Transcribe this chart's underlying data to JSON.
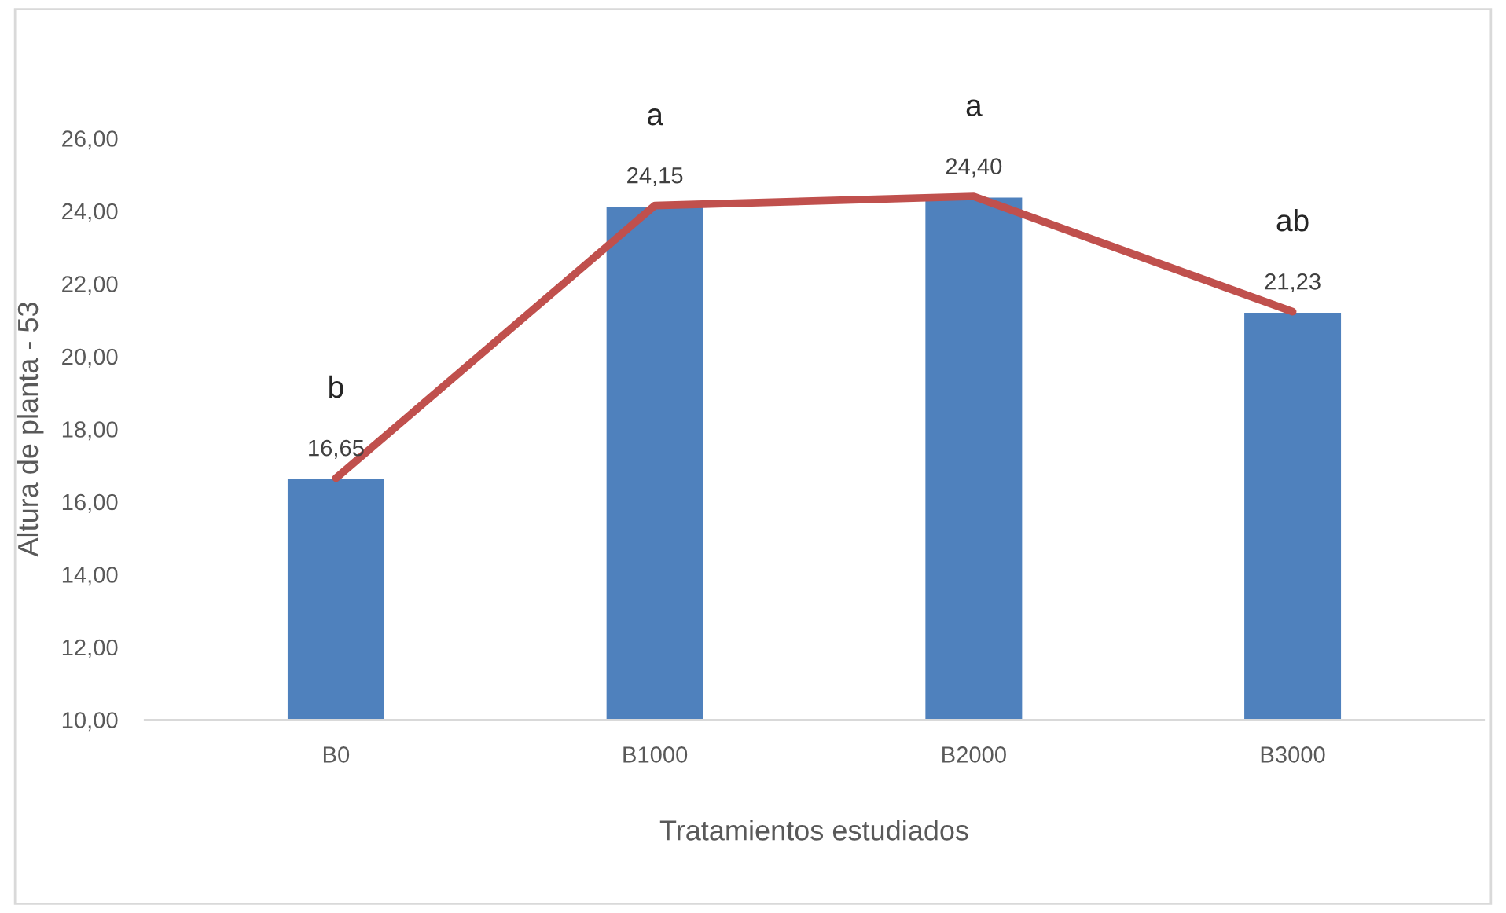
{
  "chart_data": {
    "type": "bar",
    "xlabel": "Tratamientos estudiados",
    "ylabel": "Altura de planta - 53",
    "categories": [
      "B0",
      "B1000",
      "B2000",
      "B3000"
    ],
    "series": [
      {
        "color": "#4f81bd",
        "values": [
          16.65,
          24.15,
          24.4,
          21.23
        ],
        "value_labels": [
          "16,65",
          "24,15",
          "24,40",
          "21,23"
        ]
      },
      {
        "type": "line",
        "color": "#c0504d",
        "values": [
          16.65,
          24.15,
          24.4,
          21.23
        ]
      }
    ],
    "ylim": [
      10,
      26
    ],
    "yticks": [
      {
        "value": 10,
        "label": "10,00"
      },
      {
        "value": 12,
        "label": "12,00"
      },
      {
        "value": 14,
        "label": "14,00"
      },
      {
        "value": 16,
        "label": "16,00"
      },
      {
        "value": 18,
        "label": "18,00"
      },
      {
        "value": 20,
        "label": "20,00"
      },
      {
        "value": 22,
        "label": "22,00"
      },
      {
        "value": 24,
        "label": "24,00"
      },
      {
        "value": 26,
        "label": "26,00"
      }
    ],
    "annotations": [
      "b",
      "a",
      "a",
      "ab"
    ],
    "grid": false,
    "legend": false,
    "marker": "none",
    "line_style": "solid"
  }
}
